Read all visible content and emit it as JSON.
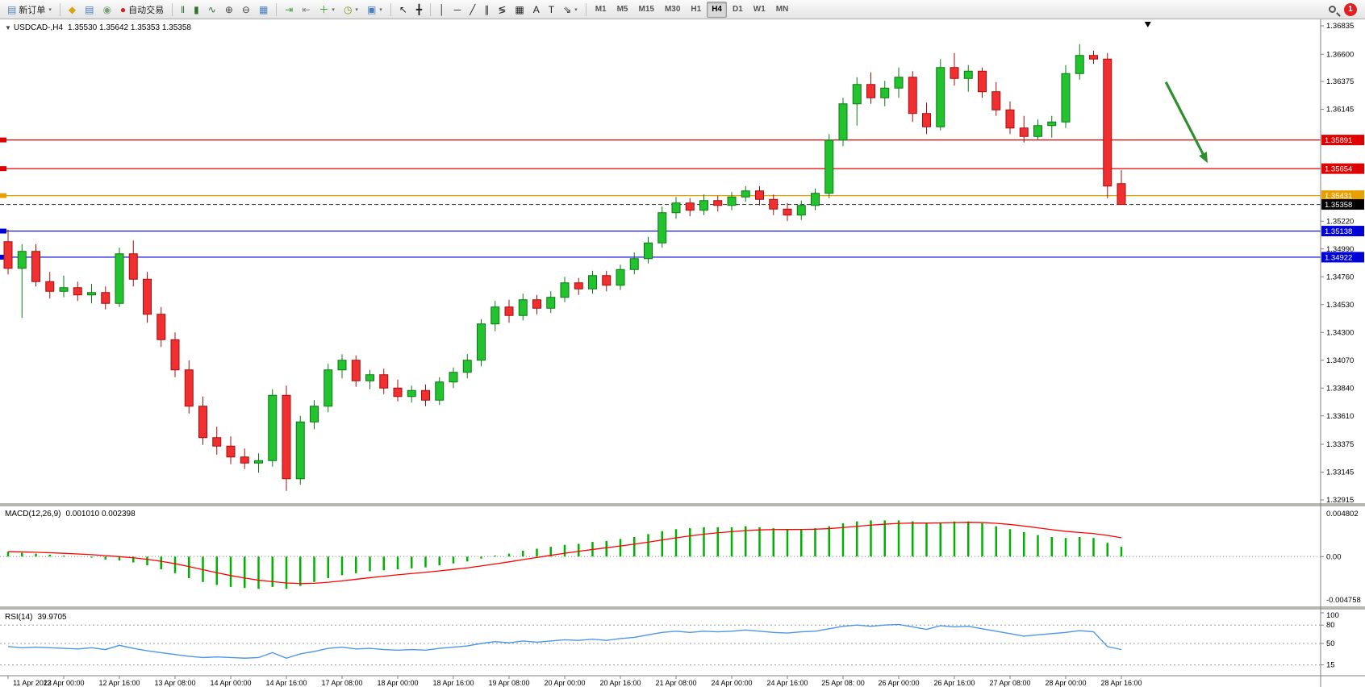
{
  "toolbar": {
    "active_timeframe": "H4",
    "notification_count": "1",
    "groups": [
      {
        "name": "order",
        "items": [
          {
            "name": "new-order-button",
            "icon": "new-order-icon",
            "glyph": "▤",
            "glyph_color": "#5b86b5",
            "label": "新订单",
            "dropdown": true
          }
        ]
      },
      {
        "name": "charts",
        "items": [
          {
            "name": "new-chart-button",
            "icon": "new-chart-icon",
            "glyph": "◆",
            "glyph_color": "#d9a417"
          },
          {
            "name": "profiles-button",
            "icon": "profiles-icon",
            "glyph": "▤",
            "glyph_color": "#4a7ebb"
          },
          {
            "name": "data-window-button",
            "icon": "data-window-icon",
            "glyph": "◉",
            "glyph_color": "#7a9e7a"
          },
          {
            "name": "auto-trading-button",
            "icon": "auto-trading-icon",
            "glyph": "●",
            "glyph_color": "#cc2222",
            "label": "自动交易"
          }
        ]
      },
      {
        "name": "chart-type",
        "items": [
          {
            "name": "bar-chart-button",
            "icon": "bar-chart-icon",
            "glyph": "‖",
            "glyph_color": "#2f6f2f"
          },
          {
            "name": "candlestick-chart-button",
            "icon": "candlestick-icon",
            "glyph": "▮",
            "glyph_color": "#2f6f2f"
          },
          {
            "name": "line-chart-button",
            "icon": "line-chart-icon",
            "glyph": "∿",
            "glyph_color": "#2f6f2f"
          },
          {
            "name": "zoom-in-button",
            "icon": "zoom-in-icon",
            "glyph": "⊕",
            "glyph_color": "#444444"
          },
          {
            "name": "zoom-out-button",
            "icon": "zoom-out-icon",
            "glyph": "⊖",
            "glyph_color": "#444444"
          },
          {
            "name": "tile-windows-button",
            "icon": "tile-windows-icon",
            "glyph": "▦",
            "glyph_color": "#4a7ebb"
          }
        ]
      },
      {
        "name": "tools",
        "items": [
          {
            "name": "auto-scroll-button",
            "icon": "auto-scroll-icon",
            "glyph": "⇥",
            "glyph_color": "#3d9e3d"
          },
          {
            "name": "chart-shift-button",
            "icon": "chart-shift-icon",
            "glyph": "⇤",
            "glyph_color": "#888888"
          },
          {
            "name": "indicators-button",
            "icon": "indicators-icon",
            "glyph": "＋",
            "glyph_color": "#2a9e2a",
            "dropdown": true
          },
          {
            "name": "periods-button",
            "icon": "clock-icon",
            "glyph": "◷",
            "glyph_color": "#8a8a20",
            "dropdown": true
          },
          {
            "name": "templates-button",
            "icon": "template-icon",
            "glyph": "▣",
            "glyph_color": "#4a7ebb",
            "dropdown": true
          }
        ]
      },
      {
        "name": "cursor",
        "items": [
          {
            "name": "cursor-button",
            "icon": "cursor-arrow-icon",
            "glyph": "↖",
            "glyph_color": "#222222"
          },
          {
            "name": "crosshair-button",
            "icon": "crosshair-icon",
            "glyph": "╋",
            "glyph_color": "#222222"
          }
        ]
      },
      {
        "name": "draw",
        "items": [
          {
            "name": "vertical-line-button",
            "icon": "vertical-line-icon",
            "glyph": "│",
            "glyph_color": "#222222"
          },
          {
            "name": "horizontal-line-button",
            "icon": "horizontal-line-icon",
            "glyph": "─",
            "glyph_color": "#222222"
          },
          {
            "name": "trendline-button",
            "icon": "trendline-icon",
            "glyph": "╱",
            "glyph_color": "#222222"
          },
          {
            "name": "channel-button",
            "icon": "channel-icon",
            "glyph": "∥",
            "glyph_color": "#222222"
          },
          {
            "name": "fibonacci-button",
            "icon": "fibonacci-icon",
            "glyph": "≶",
            "glyph_color": "#222222"
          },
          {
            "name": "shapes-button",
            "icon": "shapes-icon",
            "glyph": "▦",
            "glyph_color": "#222222"
          },
          {
            "name": "text-button",
            "icon": "text-icon",
            "glyph": "A",
            "glyph_color": "#222222"
          },
          {
            "name": "label-button",
            "icon": "label-icon",
            "glyph": "T",
            "glyph_color": "#222222"
          },
          {
            "name": "arrows-button",
            "icon": "arrow-objects-icon",
            "glyph": "⇘",
            "glyph_color": "#222222",
            "dropdown": true
          }
        ]
      },
      {
        "name": "timeframes",
        "items": [
          {
            "name": "timeframe-m1",
            "label": "M1"
          },
          {
            "name": "timeframe-m5",
            "label": "M5"
          },
          {
            "name": "timeframe-m15",
            "label": "M15"
          },
          {
            "name": "timeframe-m30",
            "label": "M30"
          },
          {
            "name": "timeframe-h1",
            "label": "H1"
          },
          {
            "name": "timeframe-h4",
            "label": "H4"
          },
          {
            "name": "timeframe-d1",
            "label": "D1"
          },
          {
            "name": "timeframe-w1",
            "label": "W1"
          },
          {
            "name": "timeframe-mn",
            "label": "MN"
          }
        ]
      }
    ]
  },
  "chart": {
    "title_symbol": "USDCAD-,H4",
    "title_ohlc": "1.35530 1.35642 1.35353 1.35358",
    "macd_label": "MACD(12,26,9)",
    "macd_values": "0.001010 0.002398",
    "rsi_label": "RSI(14)",
    "rsi_value": "39.9705"
  },
  "chart_data": {
    "type": "candlestick",
    "symbol": "USDCAD-",
    "timeframe": "H4",
    "price_axis": {
      "max": 1.36835,
      "min": 1.32915,
      "ticks": [
        "1.36835",
        "1.36600",
        "1.36375",
        "1.36145",
        "1.35220",
        "1.34990",
        "1.34760",
        "1.34530",
        "1.34300",
        "1.34070",
        "1.33840",
        "1.33610",
        "1.33375",
        "1.33145",
        "1.32915"
      ]
    },
    "candles": [
      [
        1.3505,
        1.3515,
        1.3478,
        1.3483
      ],
      [
        1.3483,
        1.3503,
        1.3442,
        1.3497
      ],
      [
        1.3497,
        1.3503,
        1.3468,
        1.3472
      ],
      [
        1.3472,
        1.348,
        1.3458,
        1.3464
      ],
      [
        1.3464,
        1.3477,
        1.3459,
        1.3467
      ],
      [
        1.3467,
        1.3472,
        1.3456,
        1.3461
      ],
      [
        1.3461,
        1.347,
        1.3454,
        1.3463
      ],
      [
        1.3463,
        1.3468,
        1.3449,
        1.3454
      ],
      [
        1.3454,
        1.35,
        1.3451,
        1.3495
      ],
      [
        1.3495,
        1.3506,
        1.3468,
        1.3474
      ],
      [
        1.3474,
        1.348,
        1.3438,
        1.3445
      ],
      [
        1.3445,
        1.3451,
        1.3418,
        1.3424
      ],
      [
        1.3424,
        1.343,
        1.3393,
        1.3399
      ],
      [
        1.3399,
        1.3407,
        1.3363,
        1.3369
      ],
      [
        1.3369,
        1.3377,
        1.3337,
        1.3343
      ],
      [
        1.3343,
        1.3352,
        1.3329,
        1.3336
      ],
      [
        1.3336,
        1.3344,
        1.3321,
        1.3327
      ],
      [
        1.3327,
        1.3334,
        1.3317,
        1.3322
      ],
      [
        1.3322,
        1.333,
        1.3314,
        1.3324
      ],
      [
        1.3324,
        1.3383,
        1.3319,
        1.3378
      ],
      [
        1.3378,
        1.3386,
        1.3299,
        1.3309
      ],
      [
        1.3309,
        1.3361,
        1.3304,
        1.3356
      ],
      [
        1.3356,
        1.3374,
        1.335,
        1.3369
      ],
      [
        1.3369,
        1.3404,
        1.3364,
        1.3399
      ],
      [
        1.3399,
        1.3412,
        1.3392,
        1.3407
      ],
      [
        1.3407,
        1.3411,
        1.3385,
        1.339
      ],
      [
        1.339,
        1.3399,
        1.3383,
        1.3395
      ],
      [
        1.3395,
        1.34,
        1.3379,
        1.3384
      ],
      [
        1.3384,
        1.3391,
        1.3373,
        1.3377
      ],
      [
        1.3377,
        1.3386,
        1.3372,
        1.3382
      ],
      [
        1.3382,
        1.3387,
        1.3369,
        1.3374
      ],
      [
        1.3374,
        1.3393,
        1.337,
        1.3389
      ],
      [
        1.3389,
        1.3401,
        1.3384,
        1.3397
      ],
      [
        1.3397,
        1.3412,
        1.3392,
        1.3407
      ],
      [
        1.3407,
        1.3441,
        1.3402,
        1.3437
      ],
      [
        1.3437,
        1.3456,
        1.3431,
        1.3451
      ],
      [
        1.3451,
        1.3457,
        1.3438,
        1.3444
      ],
      [
        1.3444,
        1.3462,
        1.344,
        1.3457
      ],
      [
        1.3457,
        1.3461,
        1.3445,
        1.345
      ],
      [
        1.345,
        1.3464,
        1.3446,
        1.3459
      ],
      [
        1.3459,
        1.3476,
        1.3455,
        1.3471
      ],
      [
        1.3471,
        1.3475,
        1.3461,
        1.3466
      ],
      [
        1.3466,
        1.3481,
        1.3462,
        1.3477
      ],
      [
        1.3477,
        1.3481,
        1.3464,
        1.3469
      ],
      [
        1.3469,
        1.3486,
        1.3465,
        1.3482
      ],
      [
        1.3482,
        1.3496,
        1.3478,
        1.3491
      ],
      [
        1.3491,
        1.3509,
        1.3487,
        1.3504
      ],
      [
        1.3504,
        1.3534,
        1.35,
        1.3529
      ],
      [
        1.3529,
        1.3542,
        1.3524,
        1.3537
      ],
      [
        1.3537,
        1.3541,
        1.3526,
        1.3531
      ],
      [
        1.3531,
        1.3544,
        1.3527,
        1.3539
      ],
      [
        1.3539,
        1.3543,
        1.353,
        1.3535
      ],
      [
        1.3535,
        1.3546,
        1.3531,
        1.3542
      ],
      [
        1.3542,
        1.3551,
        1.3538,
        1.3547
      ],
      [
        1.3547,
        1.3551,
        1.3535,
        1.354
      ],
      [
        1.354,
        1.3544,
        1.3527,
        1.3532
      ],
      [
        1.3532,
        1.3537,
        1.3522,
        1.3527
      ],
      [
        1.3527,
        1.3539,
        1.3523,
        1.3535
      ],
      [
        1.3535,
        1.3549,
        1.3531,
        1.3545
      ],
      [
        1.3545,
        1.3594,
        1.3541,
        1.3589
      ],
      [
        1.3589,
        1.3624,
        1.3584,
        1.3619
      ],
      [
        1.3619,
        1.3641,
        1.3601,
        1.3635
      ],
      [
        1.3635,
        1.3645,
        1.3619,
        1.3624
      ],
      [
        1.3624,
        1.3638,
        1.3617,
        1.3632
      ],
      [
        1.3632,
        1.3649,
        1.3624,
        1.3641
      ],
      [
        1.3641,
        1.3646,
        1.3604,
        1.3611
      ],
      [
        1.3611,
        1.362,
        1.3594,
        1.36
      ],
      [
        1.36,
        1.3656,
        1.3597,
        1.3649
      ],
      [
        1.3649,
        1.3661,
        1.3634,
        1.364
      ],
      [
        1.364,
        1.3651,
        1.3629,
        1.3646
      ],
      [
        1.3646,
        1.3649,
        1.3624,
        1.3629
      ],
      [
        1.3629,
        1.3637,
        1.3609,
        1.3614
      ],
      [
        1.3614,
        1.3621,
        1.3594,
        1.3599
      ],
      [
        1.3599,
        1.3609,
        1.3587,
        1.3592
      ],
      [
        1.3592,
        1.3606,
        1.3589,
        1.3601
      ],
      [
        1.3601,
        1.3609,
        1.3591,
        1.3604
      ],
      [
        1.3604,
        1.3651,
        1.3599,
        1.3644
      ],
      [
        1.3644,
        1.36684,
        1.3639,
        1.3659
      ],
      [
        1.3659,
        1.3663,
        1.3652,
        1.3656
      ],
      [
        1.3656,
        1.3661,
        1.3541,
        1.3551
      ],
      [
        1.3553,
        1.35642,
        1.35353,
        1.35358
      ]
    ],
    "x_labels": [
      {
        "i": 0,
        "label": "11 Apr 2023"
      },
      {
        "i": 4,
        "label": "12 Apr 00:00"
      },
      {
        "i": 8,
        "label": "12 Apr 16:00"
      },
      {
        "i": 12,
        "label": "13 Apr 08:00"
      },
      {
        "i": 16,
        "label": "14 Apr 00:00"
      },
      {
        "i": 20,
        "label": "14 Apr 16:00"
      },
      {
        "i": 24,
        "label": "17 Apr 08:00"
      },
      {
        "i": 28,
        "label": "18 Apr 00:00"
      },
      {
        "i": 32,
        "label": "18 Apr 16:00"
      },
      {
        "i": 36,
        "label": "19 Apr 08:00"
      },
      {
        "i": 40,
        "label": "20 Apr 00:00"
      },
      {
        "i": 44,
        "label": "20 Apr 16:00"
      },
      {
        "i": 48,
        "label": "21 Apr 08:00"
      },
      {
        "i": 52,
        "label": "24 Apr 00:00"
      },
      {
        "i": 56,
        "label": "24 Apr 16:00"
      },
      {
        "i": 60,
        "label": "25 Apr 08: 00"
      },
      {
        "i": 64,
        "label": "26 Apr 00:00"
      },
      {
        "i": 68,
        "label": "26 Apr 16:00"
      },
      {
        "i": 72,
        "label": "27 Apr 08:00"
      },
      {
        "i": 76,
        "label": "28 Apr 00:00"
      },
      {
        "i": 80,
        "label": "28 Apr 16:00"
      }
    ],
    "levels": [
      {
        "price": 1.35891,
        "label": "1.35891",
        "color": "#E00000"
      },
      {
        "price": 1.35654,
        "label": "1.35654",
        "color": "#E00000"
      },
      {
        "price": 1.35431,
        "label": "1.35431",
        "color": "#E8A000"
      },
      {
        "price": 1.35138,
        "label": "1.35138",
        "color": "#0000D8"
      },
      {
        "price": 1.34922,
        "label": "1.34922",
        "color": "#0000D8"
      }
    ],
    "bid": {
      "price": 1.35358,
      "label": "1.35358",
      "color": "#000000"
    },
    "annotations": {
      "arrow": {
        "from_bar": 83.2,
        "from_price": 1.3637,
        "to_bar": 86.2,
        "to_price": 1.357,
        "color": "#2F8F2F"
      },
      "shift_marker_bar": 81.9
    },
    "macd": {
      "params": "12,26,9",
      "value": 0.00101,
      "signal": 0.002398,
      "axis_labels": [
        "0.004802",
        "0.00",
        "-0.004758"
      ],
      "axis": {
        "max": 0.004802,
        "min": -0.004758
      },
      "values": [
        0.0005,
        0.0004,
        0.0003,
        0.0002,
        0.0001,
        0.0,
        -0.0001,
        -0.0003,
        -0.0004,
        -0.0006,
        -0.0009,
        -0.0013,
        -0.0017,
        -0.0022,
        -0.0026,
        -0.0029,
        -0.0031,
        -0.0032,
        -0.0033,
        -0.0031,
        -0.0033,
        -0.003,
        -0.0026,
        -0.0022,
        -0.0019,
        -0.0017,
        -0.0015,
        -0.0014,
        -0.0013,
        -0.0012,
        -0.0011,
        -0.0009,
        -0.0007,
        -0.0005,
        -0.0002,
        0.0001,
        0.0003,
        0.0006,
        0.0008,
        0.001,
        0.0012,
        0.0013,
        0.0015,
        0.0016,
        0.0018,
        0.002,
        0.0023,
        0.0026,
        0.0028,
        0.0029,
        0.003,
        0.003,
        0.003,
        0.0031,
        0.003,
        0.0029,
        0.0028,
        0.0028,
        0.0029,
        0.0031,
        0.0034,
        0.0036,
        0.0037,
        0.0037,
        0.0037,
        0.0036,
        0.0034,
        0.0035,
        0.0036,
        0.0036,
        0.0034,
        0.0031,
        0.0028,
        0.0025,
        0.0022,
        0.002,
        0.0019,
        0.002,
        0.0019,
        0.0014,
        0.001
      ]
    },
    "rsi": {
      "period": 14,
      "last": 39.9705,
      "levels": [
        80,
        50,
        15
      ],
      "axis_labels": [
        "100",
        "80",
        "50",
        "15"
      ],
      "values": [
        45,
        43,
        44,
        43,
        42,
        41,
        43,
        40,
        47,
        42,
        38,
        35,
        32,
        29,
        27,
        28,
        27,
        26,
        27,
        35,
        26,
        33,
        37,
        42,
        44,
        41,
        42,
        40,
        39,
        40,
        39,
        42,
        44,
        46,
        50,
        53,
        51,
        54,
        52,
        54,
        56,
        55,
        57,
        55,
        58,
        60,
        64,
        68,
        70,
        68,
        70,
        69,
        70,
        72,
        70,
        68,
        67,
        69,
        70,
        74,
        78,
        80,
        78,
        80,
        81,
        77,
        73,
        79,
        77,
        78,
        74,
        70,
        66,
        62,
        64,
        66,
        68,
        71,
        69,
        45,
        39.97
      ]
    },
    "colors": {
      "up": "#22C32E",
      "up_edge": "#0A7A14",
      "down": "#F03030",
      "down_edge": "#A80D0D",
      "macd_histogram": "#00B200",
      "macd_signal": "#FF0000",
      "rsi_line": "#4E96E8",
      "bid_line": "#404040",
      "axis_text": "#000000"
    }
  }
}
